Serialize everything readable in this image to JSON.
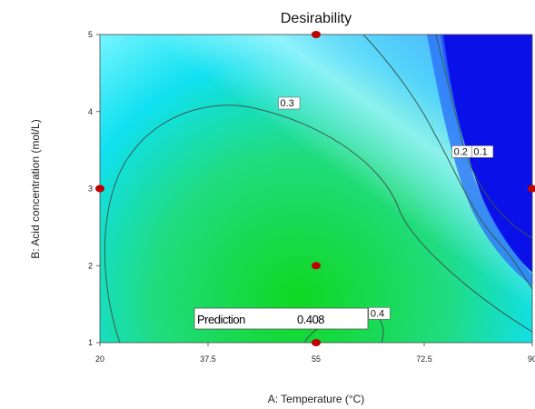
{
  "chart_data": {
    "type": "contour",
    "title": "Desirability",
    "xlabel": "A: Temperature (°C)",
    "ylabel": "B: Acid concentration (mol/L)",
    "xlim": [
      20,
      90
    ],
    "ylim": [
      1,
      5
    ],
    "x_ticks": [
      20,
      37.5,
      55,
      72.5,
      90
    ],
    "x_tick_labels": [
      "20",
      "37.5",
      "55",
      "72.5",
      "90"
    ],
    "y_ticks": [
      1,
      2,
      3,
      4,
      5
    ],
    "y_tick_labels": [
      "1",
      "2",
      "3",
      "4",
      "5"
    ],
    "contour_labels": [
      {
        "text": "0.3",
        "x": 49.2,
        "y": 4.08
      },
      {
        "text": "0.2",
        "x": 77.3,
        "y": 3.45
      },
      {
        "text": "0.1",
        "x": 80.5,
        "y": 3.45
      },
      {
        "text": "0.4",
        "x": 63.8,
        "y": 1.35
      }
    ],
    "design_points": [
      {
        "x": 55,
        "y": 5
      },
      {
        "x": 20,
        "y": 3
      },
      {
        "x": 90,
        "y": 3
      },
      {
        "x": 55,
        "y": 2
      },
      {
        "x": 55,
        "y": 1
      }
    ],
    "prediction": {
      "label": "Prediction",
      "value": "0.408"
    }
  },
  "colors": {
    "low": "#0a10e8",
    "mid": "#10e0f0",
    "high": "#10d820",
    "contour_line": "#3a5a50",
    "design_point": "#c00000"
  }
}
